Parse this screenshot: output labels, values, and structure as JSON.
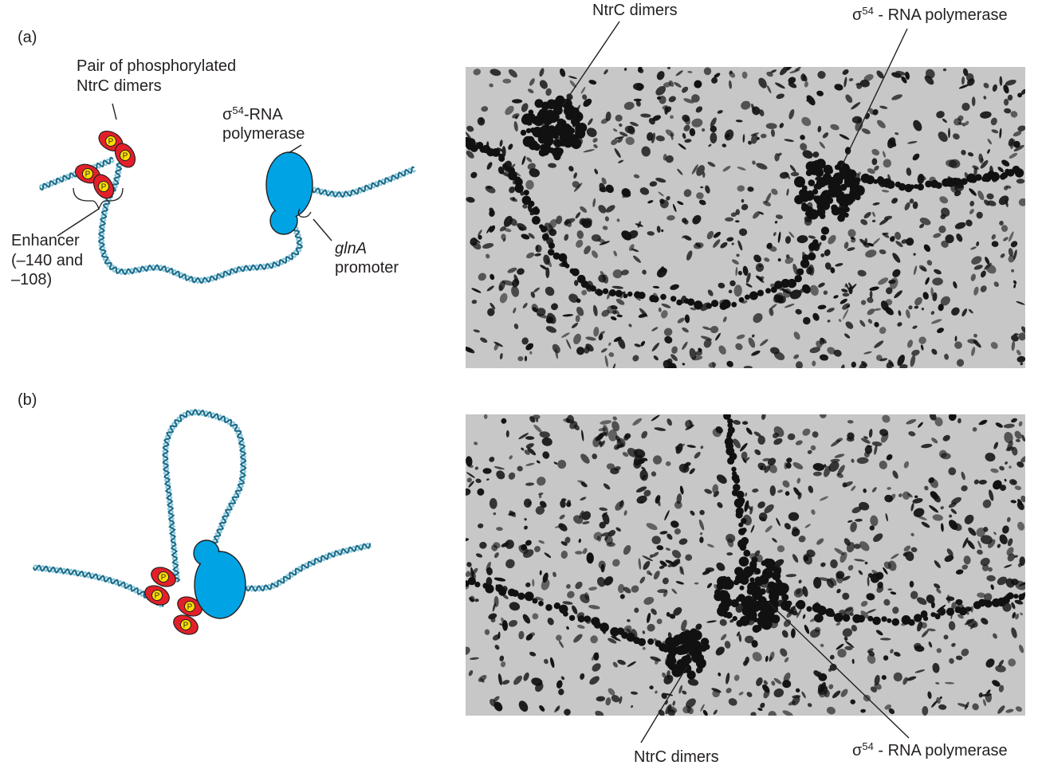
{
  "panel_a": {
    "tag": "(a)",
    "diagram": {
      "ntrc_label_line1": "Pair of phosphorylated",
      "ntrc_label_line2": "NtrC dimers",
      "polymerase_sigma": "σ",
      "polymerase_sup": "54",
      "polymerase_line1_rest": "-RNA",
      "polymerase_line2": "polymerase",
      "enhancer_line1": "Enhancer",
      "enhancer_line2": "(–140 and",
      "enhancer_line3": "–108)",
      "promoter_gene": "glnA",
      "promoter_word": "promoter",
      "phospho_mark": "P"
    },
    "micrograph": {
      "ntrc_label": "NtrC dimers",
      "polymerase_sigma": "σ",
      "polymerase_sup": "54",
      "polymerase_rest": " - RNA polymerase"
    }
  },
  "panel_b": {
    "tag": "(b)",
    "diagram": {
      "phospho_mark": "P"
    },
    "micrograph": {
      "ntrc_label": "NtrC dimers",
      "polymerase_sigma": "σ",
      "polymerase_sup": "54",
      "polymerase_rest": " - RNA polymerase"
    }
  },
  "colors": {
    "dna_strand_1": "#1f6f8b",
    "dna_strand_2": "#8cc8dc",
    "ntrc_dimer": "#e3202a",
    "phosphate": "#ffe000",
    "polymerase": "#00a4e4",
    "micrograph_background": "#c7c7c7",
    "micrograph_stain": "#111111"
  }
}
